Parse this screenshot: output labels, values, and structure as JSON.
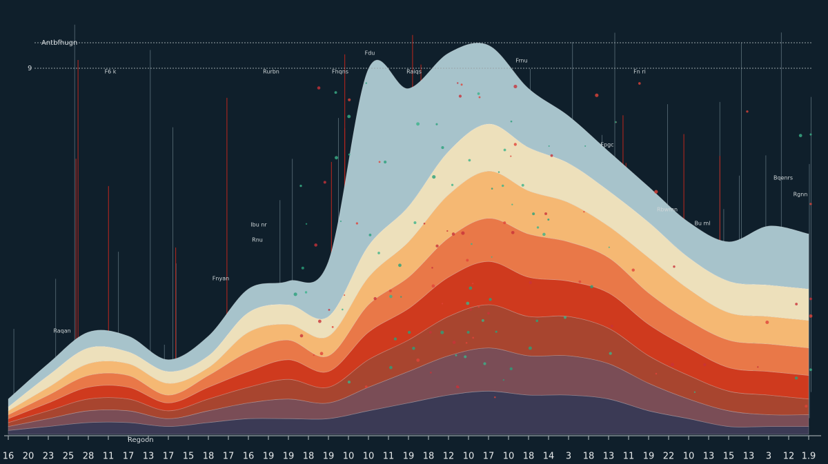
{
  "chart_data": {
    "type": "area",
    "title": "Antbfhugn",
    "y_marker": "9",
    "x_label": "Regoon",
    "annotations": [
      "Fdu",
      "F6 k",
      "Fn ri",
      "Rurbn",
      "Fhqns",
      "Raiqs",
      "Frnu",
      "Fpgc",
      "Ibu nr",
      "Rnu",
      "Bqenrs",
      "Rgnn",
      "Rbwmn",
      "Bu ml",
      "Fnyan",
      "Raqan"
    ],
    "x": [
      0,
      2,
      4,
      6,
      8,
      10,
      12,
      14,
      16,
      18,
      20,
      22,
      24,
      26,
      28,
      30,
      32,
      34,
      36,
      38,
      40
    ],
    "xlim": [
      0,
      40
    ],
    "xticks": [
      {
        "value": 0,
        "label": "16"
      },
      {
        "value": 1,
        "label": "20"
      },
      {
        "value": 2,
        "label": "23"
      },
      {
        "value": 3,
        "label": "25"
      },
      {
        "value": 4,
        "label": "28"
      },
      {
        "value": 5,
        "label": "11"
      },
      {
        "value": 6,
        "label": "17"
      },
      {
        "value": 7,
        "label": "13"
      },
      {
        "value": 8,
        "label": "17"
      },
      {
        "value": 9,
        "label": "15"
      },
      {
        "value": 10,
        "label": "18"
      },
      {
        "value": 11,
        "label": "17"
      },
      {
        "value": 12,
        "label": "16"
      },
      {
        "value": 13,
        "label": "19"
      },
      {
        "value": 14,
        "label": "19"
      },
      {
        "value": 15,
        "label": "18"
      },
      {
        "value": 16,
        "label": "19"
      },
      {
        "value": 17,
        "label": "10"
      },
      {
        "value": 18,
        "label": "10"
      },
      {
        "value": 19,
        "label": "11"
      },
      {
        "value": 20,
        "label": "19"
      },
      {
        "value": 21,
        "label": "18"
      },
      {
        "value": 22,
        "label": "12"
      },
      {
        "value": 23,
        "label": "10"
      },
      {
        "value": 24,
        "label": "17"
      },
      {
        "value": 25,
        "label": "10"
      },
      {
        "value": 26,
        "label": "18"
      },
      {
        "value": 27,
        "label": "14"
      },
      {
        "value": 28,
        "label": "3"
      },
      {
        "value": 29,
        "label": "18"
      },
      {
        "value": 30,
        "label": "13"
      },
      {
        "value": 31,
        "label": "11"
      },
      {
        "value": 32,
        "label": "19"
      },
      {
        "value": 33,
        "label": "22"
      },
      {
        "value": 34,
        "label": "10"
      },
      {
        "value": 35,
        "label": "13"
      },
      {
        "value": 36,
        "label": "15"
      },
      {
        "value": 37,
        "label": "13"
      },
      {
        "value": 38,
        "label": "3"
      },
      {
        "value": 39,
        "label": "12"
      },
      {
        "value": 40,
        "label": "1.9"
      }
    ],
    "ylim": [
      0,
      100
    ],
    "stacked": true,
    "series": [
      {
        "color": "#3b3a55",
        "values": [
          1,
          2,
          3,
          3,
          2,
          3,
          4,
          4,
          4,
          6,
          8,
          10,
          11,
          10,
          10,
          9,
          6,
          4,
          2,
          2,
          2
        ]
      },
      {
        "color": "#7a4d56",
        "values": [
          1,
          2,
          3,
          3,
          2,
          3,
          4,
          5,
          4,
          6,
          8,
          10,
          11,
          10,
          10,
          9,
          7,
          5,
          4,
          3,
          3
        ]
      },
      {
        "color": "#a8452f",
        "values": [
          1,
          2,
          3,
          3,
          2,
          3,
          4,
          5,
          4,
          7,
          8,
          10,
          11,
          10,
          10,
          9,
          7,
          6,
          5,
          5,
          4
        ]
      },
      {
        "color": "#cf3a1e",
        "values": [
          1,
          2,
          3,
          3,
          2,
          3,
          4,
          5,
          4,
          7,
          8,
          10,
          11,
          10,
          9,
          9,
          8,
          7,
          6,
          6,
          6
        ]
      },
      {
        "color": "#e97848",
        "values": [
          1,
          2,
          3,
          3,
          2,
          3,
          5,
          5,
          4,
          7,
          8,
          10,
          11,
          11,
          10,
          9,
          8,
          7,
          7,
          7,
          7
        ]
      },
      {
        "color": "#f5b873",
        "values": [
          1,
          2,
          3,
          3,
          3,
          2,
          5,
          4,
          5,
          7,
          9,
          11,
          12,
          11,
          10,
          8,
          9,
          8,
          7,
          7,
          7
        ]
      },
      {
        "color": "#ede0bb",
        "values": [
          1,
          3,
          4,
          3,
          3,
          3,
          5,
          5,
          5,
          8,
          9,
          11,
          12,
          11,
          10,
          9,
          9,
          8,
          8,
          8,
          8
        ]
      },
      {
        "color": "#a7c3cb",
        "values": [
          2,
          3,
          4,
          4,
          3,
          5,
          6,
          6,
          14,
          45,
          30,
          25,
          20,
          15,
          12,
          10,
          9,
          9,
          10,
          15,
          14
        ]
      }
    ]
  }
}
